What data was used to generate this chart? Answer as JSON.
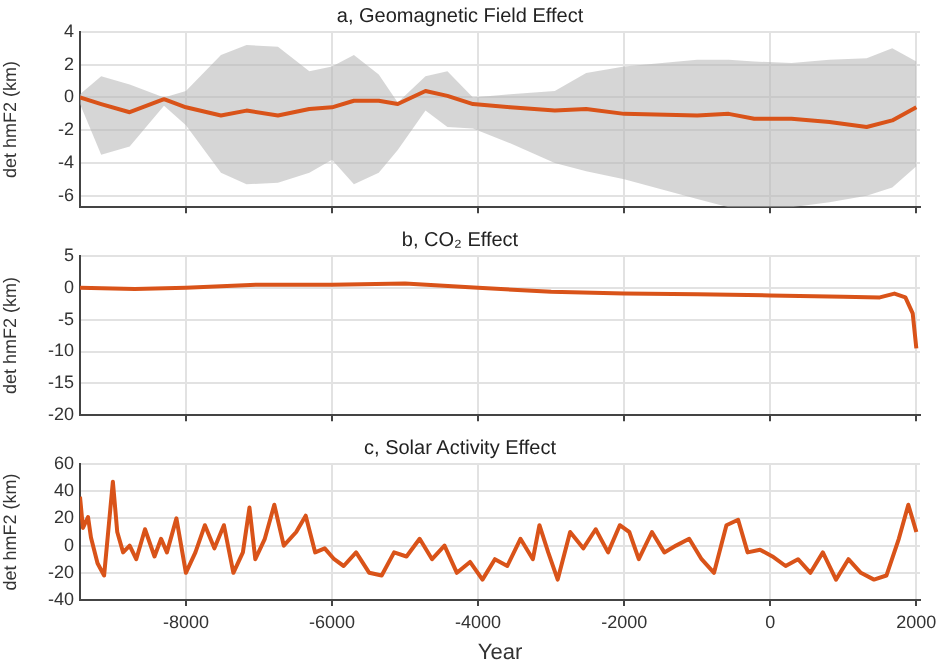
{
  "chart_data": [
    {
      "type": "line",
      "title": "a, Geomagnetic Field Effect",
      "ylabel": "det hmF2 (km)",
      "xlim": [
        -9450,
        2050
      ],
      "xticks": [
        -8000,
        -6000,
        -4000,
        -2000,
        0,
        2000
      ],
      "ylim": [
        -6.7,
        4
      ],
      "yticks": [
        -6,
        -4,
        -2,
        0,
        2,
        4
      ],
      "grid": true,
      "tick_labels": "y",
      "legend": false,
      "marker": "none",
      "x": [
        -9450,
        -9160,
        -8770,
        -8300,
        -8000,
        -7520,
        -7170,
        -6740,
        -6310,
        -6000,
        -5700,
        -5360,
        -5100,
        -4720,
        -4420,
        -4070,
        -3560,
        -2950,
        -2520,
        -2000,
        -1000,
        -570,
        -220,
        290,
        810,
        1320,
        1670,
        2000
      ],
      "series": [
        {
          "color": "#d95319",
          "values": [
            0,
            -0.4,
            -0.9,
            -0.1,
            -0.6,
            -1.1,
            -0.8,
            -1.1,
            -0.7,
            -0.6,
            -0.2,
            -0.2,
            -0.4,
            0.4,
            0.1,
            -0.4,
            -0.6,
            -0.8,
            -0.7,
            -1.0,
            -1.1,
            -1.0,
            -1.3,
            -1.3,
            -1.5,
            -1.8,
            -1.4,
            -0.6
          ],
          "lower": [
            -0.4,
            -3.5,
            -3.0,
            -0.5,
            -1.7,
            -4.6,
            -5.3,
            -5.2,
            -4.6,
            -3.8,
            -5.3,
            -4.6,
            -3.2,
            -0.8,
            -1.8,
            -1.9,
            -2.8,
            -4.0,
            -4.5,
            -5.0,
            -6.2,
            -6.7,
            -6.7,
            -6.7,
            -6.4,
            -6.0,
            -5.5,
            -4.2
          ],
          "upper": [
            0.2,
            1.3,
            0.8,
            0,
            0.4,
            2.6,
            3.2,
            3.1,
            1.6,
            1.9,
            2.6,
            1.4,
            -0.3,
            1.3,
            1.6,
            0,
            0.2,
            0.4,
            1.5,
            1.9,
            2.3,
            2.3,
            2.2,
            2.1,
            2.3,
            2.4,
            3.0,
            2.2
          ]
        }
      ]
    },
    {
      "type": "line",
      "title": "b, CO₂ Effect",
      "ylabel": "det hmF2 (km)",
      "xlim": [
        -9450,
        2050
      ],
      "xticks": [
        -8000,
        -6000,
        -4000,
        -2000,
        0,
        2000
      ],
      "ylim": [
        -20,
        5
      ],
      "yticks": [
        -20,
        -15,
        -10,
        -5,
        0,
        5
      ],
      "grid": true,
      "tick_labels": "y",
      "legend": false,
      "marker": "none",
      "x": [
        -9450,
        -8700,
        -8000,
        -7000,
        -6000,
        -5000,
        -4000,
        -3000,
        -2000,
        -1000,
        0,
        1000,
        1500,
        1700,
        1850,
        1950,
        2000
      ],
      "series": [
        {
          "color": "#d95319",
          "values": [
            0,
            -0.2,
            0,
            0.5,
            0.5,
            0.7,
            0,
            -0.6,
            -0.9,
            -1.0,
            -1.2,
            -1.4,
            -1.5,
            -0.9,
            -1.5,
            -4,
            -9.5
          ]
        }
      ]
    },
    {
      "type": "line",
      "title": "c, Solar Activity Effect",
      "xlabel": "Year",
      "ylabel": "det hmF2 (km)",
      "xlim": [
        -9450,
        2050
      ],
      "xticks": [
        -8000,
        -6000,
        -4000,
        -2000,
        0,
        2000
      ],
      "ylim": [
        -40,
        60
      ],
      "yticks": [
        -40,
        -20,
        0,
        20,
        40,
        60
      ],
      "grid": true,
      "legend": false,
      "marker": "none",
      "x": [
        -9450,
        -9410,
        -9340,
        -9300,
        -9210,
        -9120,
        -9000,
        -8940,
        -8860,
        -8770,
        -8680,
        -8560,
        -8430,
        -8340,
        -8260,
        -8130,
        -8000,
        -7870,
        -7740,
        -7610,
        -7480,
        -7350,
        -7220,
        -7130,
        -7050,
        -6920,
        -6790,
        -6660,
        -6490,
        -6360,
        -6230,
        -6100,
        -5970,
        -5840,
        -5670,
        -5490,
        -5320,
        -5150,
        -4980,
        -4800,
        -4630,
        -4460,
        -4290,
        -4110,
        -3940,
        -3770,
        -3600,
        -3420,
        -3250,
        -3160,
        -3040,
        -2910,
        -2740,
        -2560,
        -2390,
        -2220,
        -2060,
        -1930,
        -1800,
        -1620,
        -1450,
        -1290,
        -1110,
        -940,
        -770,
        -600,
        -440,
        -310,
        -140,
        30,
        210,
        380,
        550,
        720,
        900,
        1070,
        1240,
        1420,
        1590,
        1760,
        1890,
        2000
      ],
      "series": [
        {
          "color": "#d95319",
          "values": [
            36,
            13,
            21,
            6,
            -13,
            -22,
            47,
            10,
            -5,
            0,
            -10,
            12,
            -8,
            5,
            -5,
            20,
            -20,
            -5,
            15,
            -2,
            15,
            -20,
            -5,
            28,
            -10,
            5,
            30,
            0,
            10,
            22,
            -5,
            -2,
            -10,
            -15,
            -5,
            -20,
            -22,
            -5,
            -8,
            5,
            -10,
            0,
            -20,
            -12,
            -25,
            -10,
            -15,
            5,
            -10,
            15,
            -5,
            -25,
            10,
            -2,
            12,
            -5,
            15,
            10,
            -10,
            10,
            -5,
            0,
            5,
            -10,
            -20,
            15,
            19,
            -5,
            -3,
            -8,
            -15,
            -10,
            -20,
            -5,
            -25,
            -10,
            -20,
            -25,
            -22,
            5,
            30,
            10
          ]
        }
      ]
    }
  ]
}
